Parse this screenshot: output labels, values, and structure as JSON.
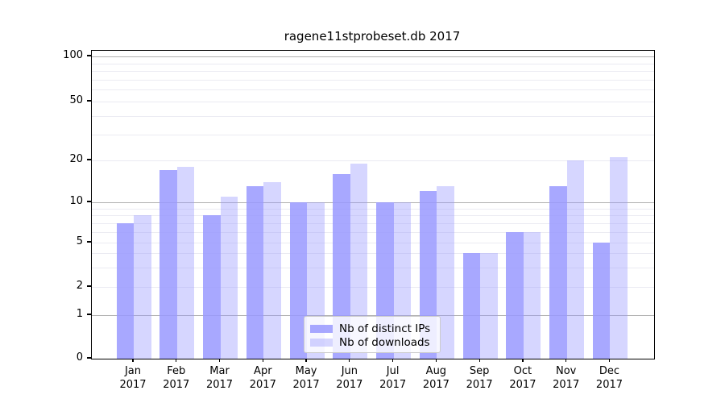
{
  "chart_data": {
    "type": "bar",
    "title": "ragene11stprobeset.db 2017",
    "xlabel": "",
    "ylabel": "",
    "categories": [
      "Jan",
      "Feb",
      "Mar",
      "Apr",
      "May",
      "Jun",
      "Jul",
      "Aug",
      "Sep",
      "Oct",
      "Nov",
      "Dec"
    ],
    "category_year": "2017",
    "series": [
      {
        "name": "Nb of distinct IPs",
        "color": "rgba(153,153,255,0.85)",
        "values": [
          7,
          17,
          8,
          13,
          10,
          16,
          10,
          12,
          4,
          6,
          13,
          5
        ]
      },
      {
        "name": "Nb of downloads",
        "color": "rgba(153,153,255,0.40)",
        "values": [
          8,
          18,
          11,
          14,
          10,
          19,
          10,
          13,
          4,
          6,
          20,
          21
        ]
      }
    ],
    "y_scale": "symlog",
    "y_ticks": [
      0,
      1,
      2,
      5,
      10,
      20,
      50,
      100
    ],
    "y_grid_major": [
      1,
      10,
      100
    ],
    "y_grid_minor": [
      2,
      3,
      4,
      5,
      6,
      7,
      8,
      9,
      20,
      30,
      40,
      50,
      60,
      70,
      80,
      90
    ],
    "ylim": [
      0,
      110
    ],
    "grid": "on",
    "legend_position": "lower center",
    "colors": {
      "bar_base": "#9999ff",
      "grid_major": "#b0b0b0",
      "grid_minor": "#ebebf2",
      "axis": "#000000",
      "background": "#ffffff"
    }
  }
}
